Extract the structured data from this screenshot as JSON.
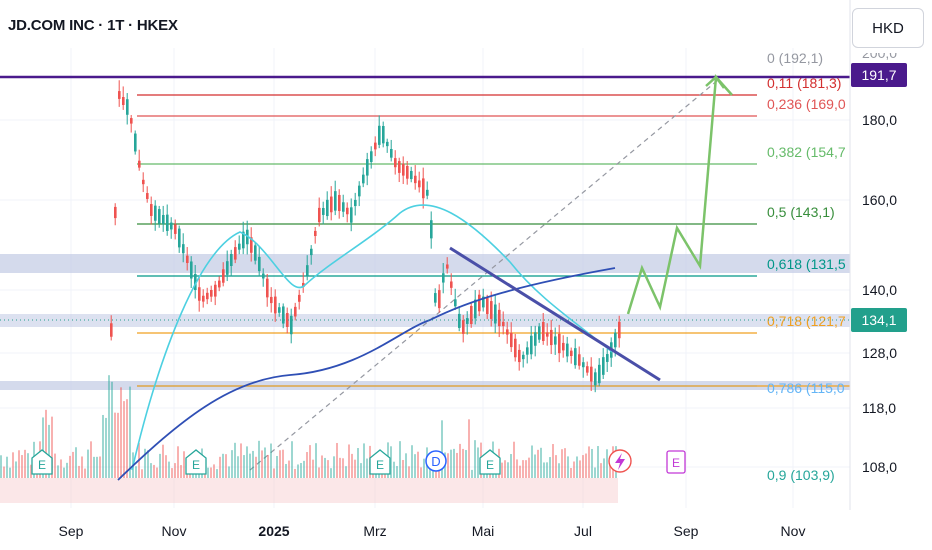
{
  "header": {
    "symbol_title": "JD.COM INC · 1T · HKEX",
    "currency": "HKD"
  },
  "chart_data": {
    "type": "candlestick",
    "title": "JD.COM INC · 1T · HKEX",
    "currency": "HKD",
    "x_ticks": [
      "Sep",
      "Nov",
      "2025",
      "Mrz",
      "Mai",
      "Jul",
      "Sep",
      "Nov"
    ],
    "y_ticks": [
      "180,0",
      "160,0",
      "140,0",
      "128,0",
      "118,0",
      "108,0"
    ],
    "y_axis_scale": "log",
    "price_badges": [
      {
        "label": "191,7",
        "color": "#4a1a8c"
      },
      {
        "label": "134,1",
        "color": "#22a08c"
      }
    ],
    "fibonacci_levels": [
      {
        "ratio": "0",
        "price": "192,1",
        "label": "0 (192,1)",
        "color": "#9598a1"
      },
      {
        "ratio": "0.11",
        "price": "181,3",
        "label": "0,11 (181,3)",
        "color": "#d32f2f"
      },
      {
        "ratio": "0.236",
        "price": "169,0",
        "label": "0,236 (169,0",
        "color": "#e05555"
      },
      {
        "ratio": "0.382",
        "price": "154,7",
        "label": "0,382 (154,7",
        "color": "#66bb6a"
      },
      {
        "ratio": "0.5",
        "price": "143,1",
        "label": "0,5 (143,1)",
        "color": "#388e3c"
      },
      {
        "ratio": "0.618",
        "price": "131,5",
        "label": "0,618 (131,5",
        "color": "#009688"
      },
      {
        "ratio": "0.718",
        "price": "121,7",
        "label": "0,718 (121,7",
        "color": "#f0a020"
      },
      {
        "ratio": "0.786",
        "price": "115,0",
        "label": "0,786 (115,0",
        "color": "#64b5f6"
      },
      {
        "ratio": "0.9",
        "price": "103,9",
        "label": "0,9 (103,9)",
        "color": "#26a69a"
      }
    ],
    "event_markers": [
      {
        "label": "E",
        "kind": "earnings"
      },
      {
        "label": "E",
        "kind": "earnings"
      },
      {
        "label": "E",
        "kind": "earnings"
      },
      {
        "label": "D",
        "kind": "dividend"
      },
      {
        "label": "E",
        "kind": "earnings"
      },
      {
        "label": "E",
        "kind": "earnings-upcoming"
      }
    ],
    "colors": {
      "up": "#26a69a",
      "down": "#ef5350",
      "ma_fast": "#4dd0e1",
      "ma_slow": "#2f4fb5",
      "trendline": "#4a4fa8",
      "projection": "#7cc36a"
    }
  }
}
